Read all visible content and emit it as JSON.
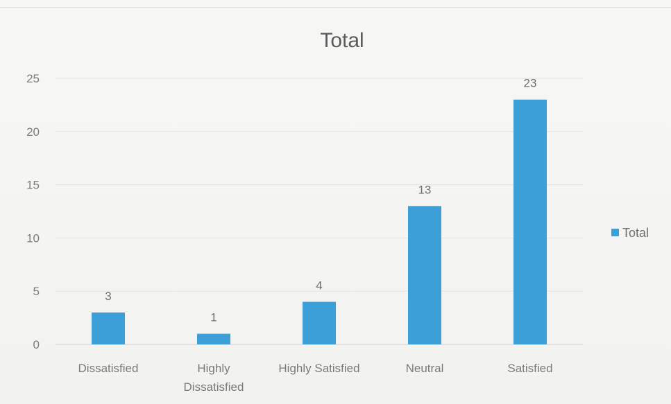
{
  "chart_data": {
    "type": "bar",
    "title": "Total",
    "categories": [
      "Dissatisfied",
      "Highly Dissatisfied",
      "Highly Satisfied",
      "Neutral",
      "Satisfied"
    ],
    "category_lines": [
      [
        "Dissatisfied"
      ],
      [
        "Highly",
        "Dissatisfied"
      ],
      [
        "Highly Satisfied"
      ],
      [
        "Neutral"
      ],
      [
        "Satisfied"
      ]
    ],
    "series": [
      {
        "name": "Total",
        "values": [
          3,
          1,
          4,
          13,
          23
        ]
      }
    ],
    "ylim": [
      0,
      25
    ],
    "yticks": [
      0,
      5,
      10,
      15,
      20,
      25
    ],
    "xlabel": "",
    "ylabel": "",
    "grid": true,
    "legend_position": "right",
    "bar_color": "#3d9fd8",
    "data_labels": true
  }
}
